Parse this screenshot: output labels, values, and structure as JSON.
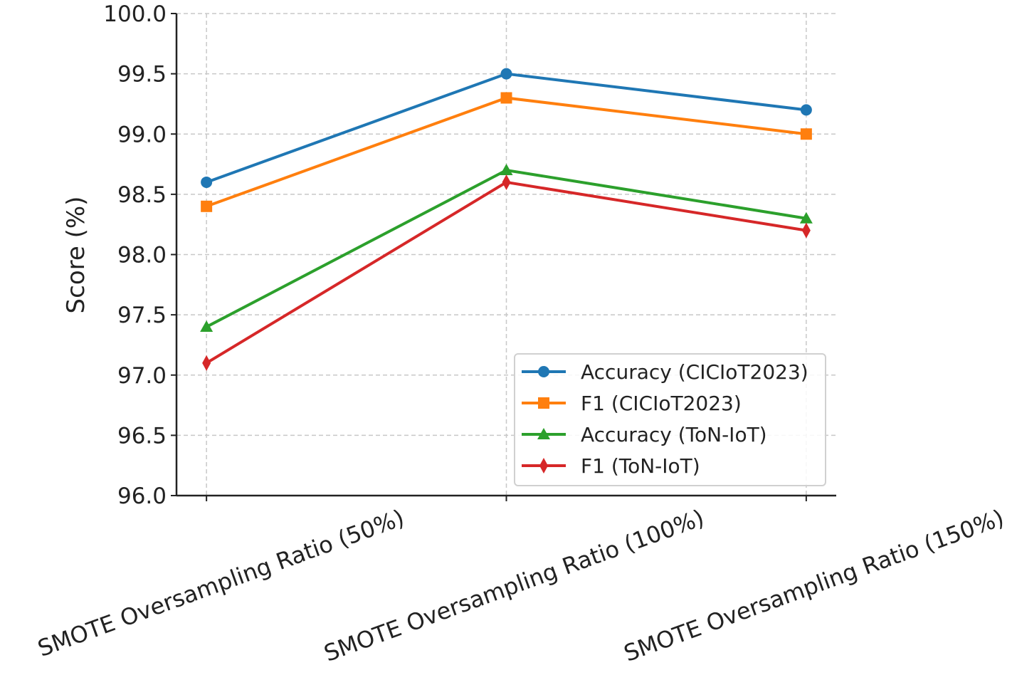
{
  "chart_data": {
    "type": "line",
    "title": "",
    "xlabel": "",
    "ylabel": "Score (%)",
    "categories": [
      "SMOTE Oversampling Ratio (50%)",
      "SMOTE Oversampling Ratio (100%)",
      "SMOTE Oversampling Ratio (150%)"
    ],
    "ylim": [
      96.0,
      100.0
    ],
    "yticks": [
      "96.0",
      "96.5",
      "97.0",
      "97.5",
      "98.0",
      "98.5",
      "99.0",
      "99.5",
      "100.0"
    ],
    "grid": true,
    "legend_position": "lower-right",
    "series": [
      {
        "name": "Accuracy (CICIoT2023)",
        "values": [
          98.6,
          99.5,
          99.2
        ],
        "color": "#1f77b4",
        "marker": "circle"
      },
      {
        "name": "F1 (CICIoT2023)",
        "values": [
          98.4,
          99.3,
          99.0
        ],
        "color": "#ff7f0e",
        "marker": "square"
      },
      {
        "name": "Accuracy (ToN-IoT)",
        "values": [
          97.4,
          98.7,
          98.3
        ],
        "color": "#2ca02c",
        "marker": "triangle"
      },
      {
        "name": "F1 (ToN-IoT)",
        "values": [
          97.1,
          98.6,
          98.2
        ],
        "color": "#d62728",
        "marker": "diamond"
      }
    ]
  }
}
